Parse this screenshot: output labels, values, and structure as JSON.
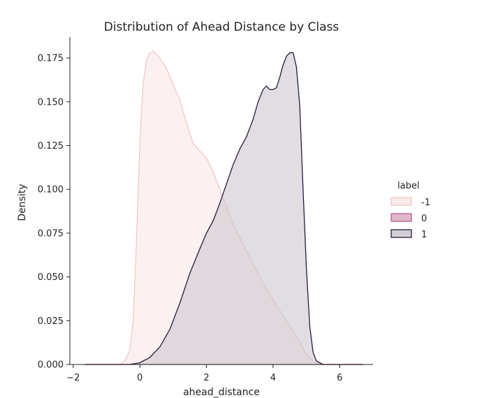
{
  "chart_data": {
    "type": "area",
    "title": "Distribution of Ahead Distance by Class",
    "xlabel": "ahead_distance",
    "ylabel": "Density",
    "xlim": [
      -2.1,
      7.0
    ],
    "ylim": [
      0,
      0.187
    ],
    "xticks": [
      -2,
      0,
      2,
      4,
      6
    ],
    "xtick_labels": [
      "−2",
      "0",
      "2",
      "4",
      "6"
    ],
    "yticks": [
      0,
      0.025,
      0.05,
      0.075,
      0.1,
      0.125,
      0.15,
      0.175
    ],
    "ytick_labels": [
      "0.000",
      "0.025",
      "0.050",
      "0.075",
      "0.100",
      "0.125",
      "0.150",
      "0.175"
    ],
    "grid": false,
    "legend": {
      "title": "label",
      "placement": "center-right"
    },
    "series": [
      {
        "name": "-1",
        "fill": "#f8e5e3",
        "stroke": "#efc9c4",
        "x": [
          -1.65,
          -0.6,
          -0.45,
          -0.3,
          -0.2,
          -0.1,
          0.0,
          0.1,
          0.2,
          0.3,
          0.4,
          0.6,
          0.8,
          1.0,
          1.2,
          1.4,
          1.6,
          1.8,
          2.0,
          2.2,
          2.5,
          2.8,
          3.2,
          3.6,
          4.0,
          4.4,
          4.8,
          5.0,
          5.2,
          5.35,
          5.5,
          6.0,
          6.7
        ],
        "values": [
          0.0,
          0.0,
          0.002,
          0.008,
          0.025,
          0.07,
          0.125,
          0.16,
          0.174,
          0.178,
          0.179,
          0.175,
          0.169,
          0.16,
          0.151,
          0.138,
          0.126,
          0.122,
          0.118,
          0.11,
          0.095,
          0.08,
          0.065,
          0.05,
          0.037,
          0.025,
          0.013,
          0.006,
          0.002,
          0.0005,
          0.0,
          0.0,
          0.0
        ]
      },
      {
        "name": "0",
        "fill": "#d8a5bd",
        "stroke": "#b85d8d",
        "x": [
          -1.65,
          6.7
        ],
        "values": [
          0.0,
          0.0
        ]
      },
      {
        "name": "1",
        "fill": "#c8c2cc",
        "stroke": "#2a1a3a",
        "x": [
          -1.65,
          -0.3,
          0.0,
          0.3,
          0.6,
          0.9,
          1.2,
          1.5,
          1.8,
          2.0,
          2.2,
          2.4,
          2.6,
          2.8,
          3.0,
          3.2,
          3.4,
          3.55,
          3.7,
          3.8,
          3.9,
          4.0,
          4.1,
          4.2,
          4.3,
          4.4,
          4.5,
          4.6,
          4.7,
          4.8,
          4.9,
          5.0,
          5.1,
          5.2,
          5.3,
          5.5,
          6.0,
          6.7
        ],
        "values": [
          0.0,
          0.0,
          0.001,
          0.004,
          0.01,
          0.02,
          0.035,
          0.052,
          0.066,
          0.075,
          0.082,
          0.092,
          0.103,
          0.114,
          0.123,
          0.13,
          0.14,
          0.15,
          0.157,
          0.159,
          0.157,
          0.157,
          0.158,
          0.164,
          0.171,
          0.176,
          0.178,
          0.178,
          0.17,
          0.148,
          0.1,
          0.055,
          0.022,
          0.007,
          0.002,
          0.0,
          0.0,
          0.0
        ]
      }
    ]
  }
}
